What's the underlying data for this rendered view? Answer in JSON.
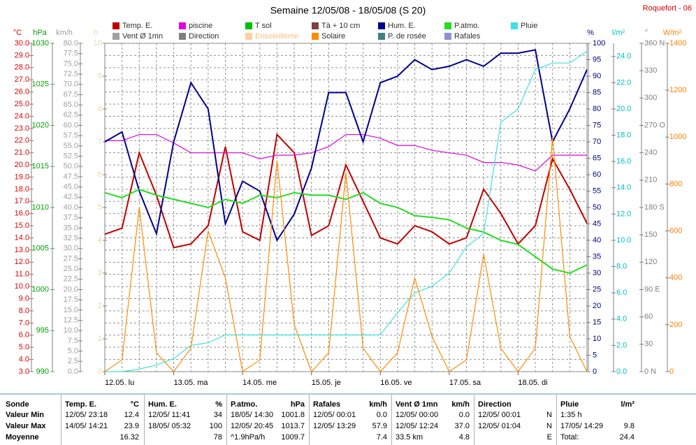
{
  "chart_data": {
    "type": "line",
    "title": "Semaine 12/05/08 - 18/05/08 (S 20)",
    "station": "Roquefort - 06",
    "grid": true,
    "xlim": [
      0,
      168
    ],
    "xticks": [
      {
        "value": 0,
        "label": "12.05. lu"
      },
      {
        "value": 24,
        "label": "13.05. ma"
      },
      {
        "value": 48,
        "label": "14.05. me"
      },
      {
        "value": 72,
        "label": "15.05. je"
      },
      {
        "value": 96,
        "label": "16.05. ve"
      },
      {
        "value": 120,
        "label": "17.05. sa"
      },
      {
        "value": 144,
        "label": "18.05. di"
      }
    ],
    "x": [
      0,
      6,
      12,
      18,
      24,
      30,
      36,
      42,
      48,
      54,
      60,
      66,
      72,
      78,
      84,
      90,
      96,
      102,
      108,
      114,
      120,
      126,
      132,
      138,
      144,
      150,
      156,
      162,
      168
    ],
    "axes": [
      {
        "unit": "°C",
        "color": "#e00000",
        "ylim": [
          3,
          30
        ],
        "yticks": [
          {
            "value": 3,
            "label": "3.0"
          },
          {
            "value": 4,
            "label": "4.0"
          },
          {
            "value": 5,
            "label": "5.0"
          },
          {
            "value": 6,
            "label": "6.0"
          },
          {
            "value": 7,
            "label": "7.0"
          },
          {
            "value": 8,
            "label": "8.0"
          },
          {
            "value": 9,
            "label": "9.0"
          },
          {
            "value": 10,
            "label": "10.0"
          },
          {
            "value": 11,
            "label": "11.0"
          },
          {
            "value": 12,
            "label": "12.0"
          },
          {
            "value": 13,
            "label": "13.0"
          },
          {
            "value": 14,
            "label": "14.0"
          },
          {
            "value": 15,
            "label": "15.0"
          },
          {
            "value": 16,
            "label": "16.0"
          },
          {
            "value": 17,
            "label": "17.0"
          },
          {
            "value": 18,
            "label": "18.0"
          },
          {
            "value": 19,
            "label": "19.0"
          },
          {
            "value": 20,
            "label": "20.0"
          },
          {
            "value": 21,
            "label": "21.0"
          },
          {
            "value": 22,
            "label": "22.0"
          },
          {
            "value": 23,
            "label": "23.0"
          },
          {
            "value": 24,
            "label": "24.0"
          },
          {
            "value": 25,
            "label": "25.0"
          },
          {
            "value": 26,
            "label": "26.0"
          },
          {
            "value": 27,
            "label": "27.0"
          },
          {
            "value": 28,
            "label": "28.0"
          },
          {
            "value": 29,
            "label": "29.0"
          },
          {
            "value": 30,
            "label": "30.0"
          }
        ]
      },
      {
        "unit": "hPa",
        "color": "#00a000",
        "ylim": [
          990,
          1030
        ],
        "yticks": [
          990,
          995,
          1000,
          1005,
          1010,
          1015,
          1020,
          1025,
          1030
        ]
      },
      {
        "unit": "km/h",
        "color": "#a0a0a0",
        "ylim": [
          0,
          80
        ],
        "yticks": [
          {
            "value": 0,
            "label": "0.0"
          },
          {
            "value": 2.5,
            "label": "2.5"
          },
          {
            "value": 5,
            "label": "5.0"
          },
          {
            "value": 7.5,
            "label": "7.5"
          },
          {
            "value": 10,
            "label": "10.0"
          },
          {
            "value": 12.5,
            "label": "12.5"
          },
          {
            "value": 15,
            "label": "15.0"
          },
          {
            "value": 17.5,
            "label": "17.5"
          },
          {
            "value": 20,
            "label": "20.0"
          },
          {
            "value": 22.5,
            "label": "22.5"
          },
          {
            "value": 25,
            "label": "25.0"
          },
          {
            "value": 27.5,
            "label": "27.5"
          },
          {
            "value": 30,
            "label": "30.0"
          },
          {
            "value": 32.5,
            "label": "32.5"
          },
          {
            "value": 35,
            "label": "35.0"
          },
          {
            "value": 37.5,
            "label": "37.5"
          },
          {
            "value": 40,
            "label": "40.0"
          },
          {
            "value": 42.5,
            "label": "42.5"
          },
          {
            "value": 45,
            "label": "45.0"
          },
          {
            "value": 47.5,
            "label": "47.5"
          },
          {
            "value": 50,
            "label": "50.0"
          },
          {
            "value": 52.5,
            "label": "52.5"
          },
          {
            "value": 55,
            "label": "55.0"
          },
          {
            "value": 57.5,
            "label": "57.5"
          },
          {
            "value": 60,
            "label": "60.0"
          },
          {
            "value": 62.5,
            "label": "62.5"
          },
          {
            "value": 65,
            "label": "65.0"
          },
          {
            "value": 67.5,
            "label": "67.5"
          },
          {
            "value": 70,
            "label": "70.0"
          },
          {
            "value": 72.5,
            "label": "72.5"
          },
          {
            "value": 75,
            "label": "75.0"
          },
          {
            "value": 77.5,
            "label": "77.5"
          },
          {
            "value": 80,
            "label": "80.0"
          }
        ]
      },
      {
        "unit": "h",
        "color": "#e8d8a0",
        "ylim": [
          0,
          10
        ],
        "yticks": [
          0,
          1,
          2,
          3,
          4,
          5,
          6,
          7,
          8,
          9,
          10
        ]
      },
      {
        "unit": "%",
        "color": "#000080",
        "ylim": [
          0,
          100
        ],
        "yticks": [
          0,
          5,
          10,
          15,
          20,
          25,
          30,
          35,
          40,
          45,
          50,
          55,
          60,
          65,
          70,
          75,
          80,
          85,
          90,
          95,
          100
        ]
      },
      {
        "unit": "l/m²",
        "color": "#00c0c0",
        "ylim": [
          0,
          25
        ],
        "yticks": [
          {
            "value": 0,
            "label": "0.0"
          },
          {
            "value": 2,
            "label": "2.0"
          },
          {
            "value": 4,
            "label": "4.0"
          },
          {
            "value": 6,
            "label": "6.0"
          },
          {
            "value": 8,
            "label": "8.0"
          },
          {
            "value": 10,
            "label": "10.0"
          },
          {
            "value": 12,
            "label": "12.0"
          },
          {
            "value": 14,
            "label": "14.0"
          },
          {
            "value": 16,
            "label": "16.0"
          },
          {
            "value": 18,
            "label": "18.0"
          },
          {
            "value": 20,
            "label": "20.0"
          },
          {
            "value": 22,
            "label": "22.0"
          },
          {
            "value": 24,
            "label": "24.0"
          }
        ]
      },
      {
        "unit": "°",
        "color": "#808080",
        "ylim": [
          0,
          360
        ],
        "yticks": [
          {
            "value": 0,
            "label": "0 N"
          },
          {
            "value": 30,
            "label": "30"
          },
          {
            "value": 60,
            "label": "60"
          },
          {
            "value": 90,
            "label": "90 E"
          },
          {
            "value": 120,
            "label": "120"
          },
          {
            "value": 150,
            "label": "150"
          },
          {
            "value": 180,
            "label": "180 S"
          },
          {
            "value": 210,
            "label": "210"
          },
          {
            "value": 240,
            "label": "240"
          },
          {
            "value": 270,
            "label": "270 O"
          },
          {
            "value": 300,
            "label": "300"
          },
          {
            "value": 330,
            "label": "330"
          },
          {
            "value": 360,
            "label": "360 N"
          }
        ]
      },
      {
        "unit": "W/m²",
        "color": "#ff8000",
        "ylim": [
          0,
          1400
        ],
        "yticks": [
          0,
          200,
          400,
          600,
          800,
          1000,
          1200,
          1400
        ]
      }
    ],
    "series": [
      {
        "name": "Temp. E.",
        "color": "#c00000",
        "axis": "°C",
        "values": [
          14.3,
          14.8,
          21.0,
          17.5,
          13.2,
          13.5,
          15.0,
          21.5,
          14.5,
          13.8,
          22.5,
          21.0,
          14.2,
          15.0,
          20.0,
          17.0,
          14.0,
          13.5,
          15.0,
          14.5,
          13.5,
          14.0,
          18.0,
          16.0,
          13.5,
          15.0,
          20.5,
          18.0,
          15.2
        ]
      },
      {
        "name": "piscine",
        "color": "#e000e0",
        "axis": "°C",
        "values": [
          22.0,
          22.0,
          22.5,
          22.5,
          21.8,
          21.0,
          21.0,
          21.0,
          21.0,
          20.5,
          20.8,
          20.8,
          21.0,
          21.5,
          22.5,
          22.5,
          22.2,
          21.6,
          21.6,
          21.2,
          21.0,
          20.8,
          20.2,
          20.2,
          20.0,
          19.5,
          20.8,
          20.8,
          20.8
        ]
      },
      {
        "name": "T sol",
        "color": "#00c000",
        "axis": "°C"
      },
      {
        "name": "Tà + 10 cm",
        "color": "#804040",
        "axis": "°C"
      },
      {
        "name": "Hum. E.",
        "color": "#000090",
        "axis": "%",
        "values": [
          70,
          73,
          55,
          42,
          70,
          88,
          80,
          45,
          58,
          55,
          40,
          48,
          62,
          85,
          85,
          70,
          88,
          90,
          95,
          92,
          93,
          95,
          93,
          97,
          97,
          98,
          70,
          80,
          92
        ]
      },
      {
        "name": "P.atmo.",
        "color": "#22dd22",
        "axis": "hPa",
        "values": [
          1011.8,
          1011.2,
          1012.2,
          1011.5,
          1011.0,
          1010.5,
          1010.0,
          1011.0,
          1010.5,
          1011.5,
          1011.2,
          1011.8,
          1011.5,
          1011.5,
          1011.0,
          1011.8,
          1010.5,
          1010.0,
          1009.0,
          1008.8,
          1008.5,
          1007.5,
          1007.0,
          1006.0,
          1005.5,
          1004.0,
          1002.5,
          1002.0,
          1003.0
        ]
      },
      {
        "name": "Pluie",
        "color": "#40e0e0",
        "axis": "l/m²",
        "values": [
          0,
          0,
          0.2,
          0.5,
          1.0,
          2.0,
          2.2,
          2.8,
          2.8,
          2.8,
          2.8,
          2.8,
          2.8,
          2.8,
          2.8,
          2.8,
          2.8,
          4.5,
          6.0,
          6.5,
          7.5,
          9.5,
          10.5,
          19.0,
          20.0,
          23.0,
          23.5,
          23.5,
          24.4
        ]
      },
      {
        "name": "Vent Ø 1mn",
        "color": "#a0a0a0",
        "axis": "km/h"
      },
      {
        "name": "Direction",
        "color": "#808080",
        "axis": "°"
      },
      {
        "name": "Ensoleilleme",
        "color": "#ffd0a0",
        "axis": "h"
      },
      {
        "name": "Solaire",
        "color": "#ff8c00",
        "axis": "W/m²",
        "values": [
          0,
          50,
          700,
          80,
          0,
          100,
          600,
          400,
          0,
          50,
          900,
          200,
          0,
          80,
          850,
          100,
          0,
          80,
          400,
          150,
          0,
          50,
          500,
          100,
          0,
          100,
          1000,
          150,
          0
        ]
      },
      {
        "name": "P. de rosée",
        "color": "#408080",
        "axis": "°C"
      },
      {
        "name": "Rafales",
        "color": "#9090d0",
        "axis": "km/h"
      }
    ],
    "table": {
      "row_labels": [
        "Sonde",
        "Valeur Min",
        "Valeur Max",
        "Moyenne"
      ],
      "columns": [
        {
          "name": "Temp. E.",
          "unit": "°C",
          "cells": [
            {
              "left": "12/05/ 23:18",
              "right": "12.4"
            },
            {
              "left": "14/05/ 14:21",
              "right": "23.9"
            },
            {
              "right": "16.32"
            }
          ]
        },
        {
          "name": "Hum. E.",
          "unit": "%",
          "cells": [
            {
              "left": "12/05/ 11:41",
              "right": "34"
            },
            {
              "left": "18/05/ 05:32",
              "right": "100"
            },
            {
              "right": "78"
            }
          ]
        },
        {
          "name": "P.atmo.",
          "unit": "hPa",
          "cells": [
            {
              "left": "18/05/ 14:30",
              "right": "1001.8"
            },
            {
              "left": "12/05/ 20:45",
              "right": "1013.7"
            },
            {
              "left": "^1.9hPa/h",
              "right": "1009.7"
            }
          ]
        },
        {
          "name": "Rafales",
          "unit": "km/h",
          "cells": [
            {
              "left": "12/05/ 00:01",
              "right": "0.0"
            },
            {
              "left": "12/05/ 13:29",
              "right": "57.9"
            },
            {
              "right": "7.4"
            }
          ]
        },
        {
          "name": "Vent Ø 1mn",
          "unit": "km/h",
          "cells": [
            {
              "left": "12/05/ 00:00",
              "right": "0.0"
            },
            {
              "left": "12/05/ 12:24",
              "right": "37.0"
            },
            {
              "left": "33.5 km",
              "right": "4.8"
            }
          ]
        },
        {
          "name": "Direction",
          "cells": [
            {
              "left": "12/05/ 00:01",
              "right": "N"
            },
            {
              "left": "12/05/ 01:04",
              "right": "N"
            },
            {
              "right": "E"
            }
          ]
        },
        {
          "name": "Pluie",
          "unit": "l/m²",
          "cells": [
            {
              "left": "1:35 h"
            },
            {
              "left": "17/05/ 14:29",
              "right": "9.8"
            },
            {
              "left": "Total:",
              "right": "24.4"
            }
          ]
        }
      ]
    }
  }
}
